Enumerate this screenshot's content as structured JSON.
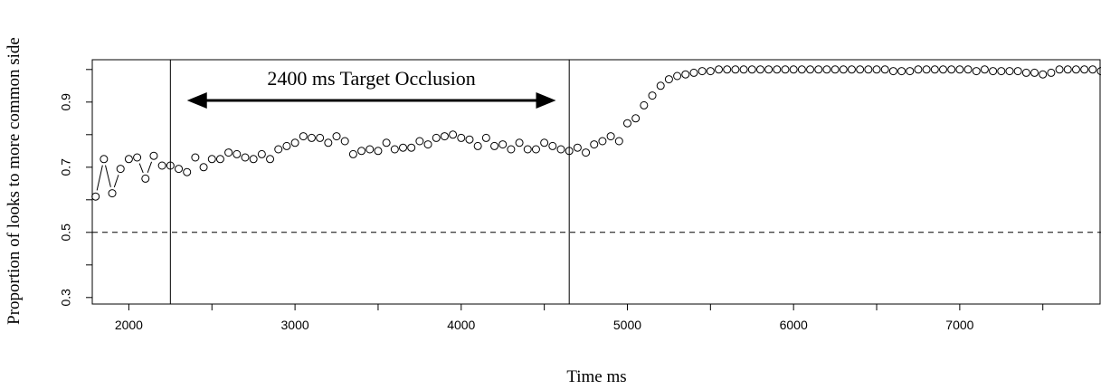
{
  "chart_data": {
    "type": "scatter",
    "xlabel": "Time ms",
    "ylabel": "Proportion of looks to more common side",
    "xlim": [
      1780,
      7850
    ],
    "ylim": [
      0.28,
      1.03
    ],
    "xticks": [
      2000,
      3000,
      4000,
      5000,
      6000,
      7000
    ],
    "yticks": [
      0.3,
      0.5,
      0.7,
      0.9
    ],
    "grid": false,
    "reference_line": {
      "y": 0.5,
      "style": "dashed"
    },
    "vertical_lines": [
      2250,
      4650
    ],
    "annotation": {
      "text": "2400 ms Target Occlusion",
      "from": 2350,
      "to": 4570,
      "y": 0.905
    },
    "x": [
      1800,
      1850,
      1900,
      1950,
      2000,
      2050,
      2100,
      2150,
      2200,
      2250,
      2300,
      2350,
      2400,
      2450,
      2500,
      2550,
      2600,
      2650,
      2700,
      2750,
      2800,
      2850,
      2900,
      2950,
      3000,
      3050,
      3100,
      3150,
      3200,
      3250,
      3300,
      3350,
      3400,
      3450,
      3500,
      3550,
      3600,
      3650,
      3700,
      3750,
      3800,
      3850,
      3900,
      3950,
      4000,
      4050,
      4100,
      4150,
      4200,
      4250,
      4300,
      4350,
      4400,
      4450,
      4500,
      4550,
      4600,
      4650,
      4700,
      4750,
      4800,
      4850,
      4900,
      4950,
      5000,
      5050,
      5100,
      5150,
      5200,
      5250,
      5300,
      5350,
      5400,
      5450,
      5500,
      5550,
      5600,
      5650,
      5700,
      5750,
      5800,
      5850,
      5900,
      5950,
      6000,
      6050,
      6100,
      6150,
      6200,
      6250,
      6300,
      6350,
      6400,
      6450,
      6500,
      6550,
      6600,
      6650,
      6700,
      6750,
      6800,
      6850,
      6900,
      6950,
      7000,
      7050,
      7100,
      7150,
      7200,
      7250,
      7300,
      7350,
      7400,
      7450,
      7500,
      7550,
      7600,
      7650,
      7700,
      7750,
      7800,
      7850
    ],
    "y": [
      0.61,
      0.725,
      0.62,
      0.695,
      0.725,
      0.73,
      0.665,
      0.735,
      0.705,
      0.705,
      0.695,
      0.685,
      0.73,
      0.7,
      0.725,
      0.725,
      0.745,
      0.74,
      0.73,
      0.725,
      0.74,
      0.725,
      0.755,
      0.765,
      0.775,
      0.795,
      0.79,
      0.79,
      0.775,
      0.795,
      0.78,
      0.74,
      0.75,
      0.755,
      0.75,
      0.775,
      0.755,
      0.76,
      0.76,
      0.78,
      0.77,
      0.79,
      0.795,
      0.8,
      0.79,
      0.785,
      0.765,
      0.79,
      0.765,
      0.77,
      0.755,
      0.775,
      0.755,
      0.755,
      0.775,
      0.765,
      0.755,
      0.75,
      0.76,
      0.745,
      0.77,
      0.78,
      0.795,
      0.78,
      0.835,
      0.85,
      0.89,
      0.92,
      0.95,
      0.97,
      0.98,
      0.985,
      0.99,
      0.995,
      0.995,
      1.0,
      1.0,
      1.0,
      1.0,
      1.0,
      1.0,
      1.0,
      1.0,
      1.0,
      1.0,
      1.0,
      1.0,
      1.0,
      1.0,
      1.0,
      1.0,
      1.0,
      1.0,
      1.0,
      1.0,
      1.0,
      0.995,
      0.995,
      0.995,
      1.0,
      1.0,
      1.0,
      1.0,
      1.0,
      1.0,
      1.0,
      0.995,
      1.0,
      0.995,
      0.995,
      0.995,
      0.995,
      0.99,
      0.99,
      0.985,
      0.99,
      1.0,
      1.0,
      1.0,
      1.0,
      1.0,
      0.995
    ],
    "connected_segments": [
      [
        0,
        1
      ],
      [
        1,
        2
      ],
      [
        2,
        3
      ],
      [
        5,
        6
      ],
      [
        6,
        7
      ]
    ]
  }
}
